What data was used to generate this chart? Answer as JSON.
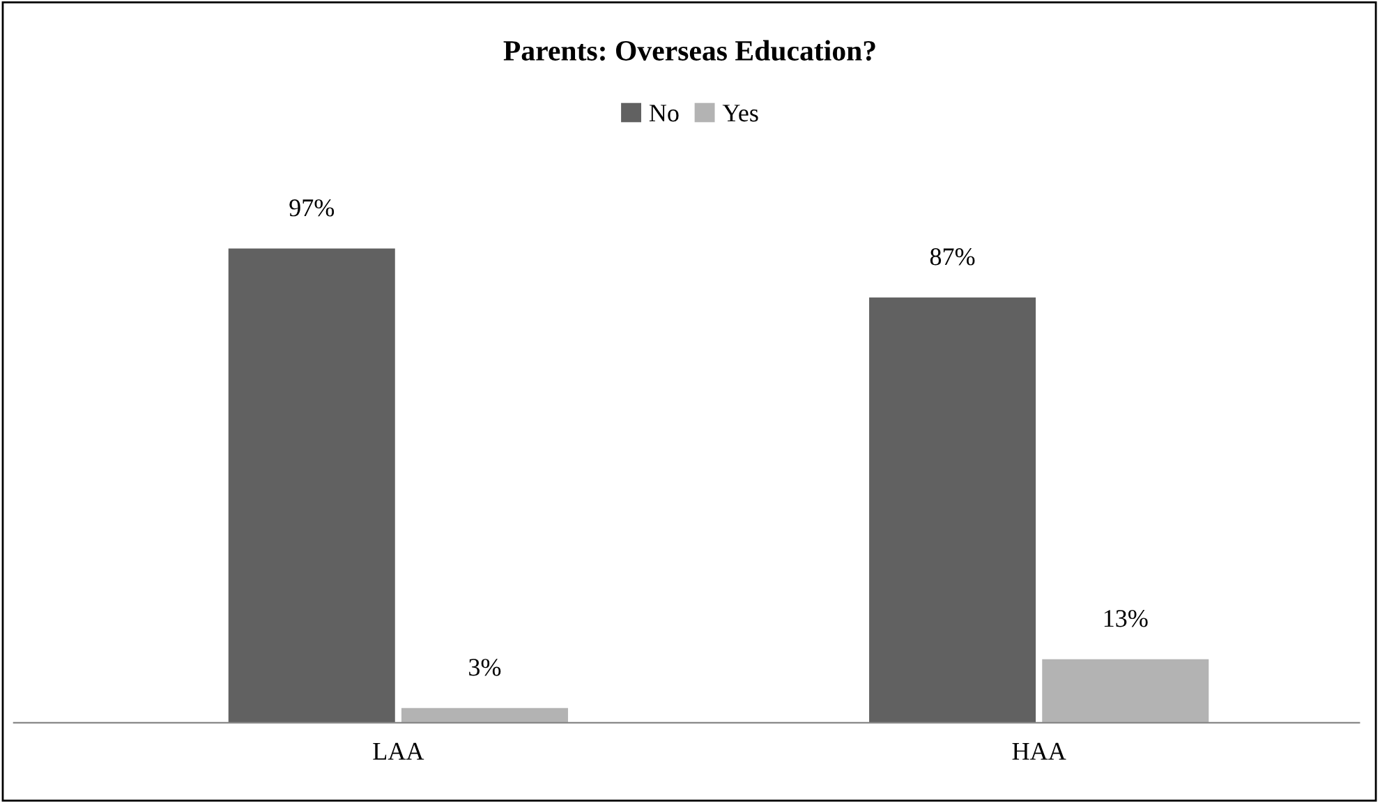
{
  "chart_data": {
    "type": "bar",
    "title": "Parents: Overseas Education?",
    "categories": [
      "LAA",
      "HAA"
    ],
    "series": [
      {
        "name": "No",
        "color": "#616161",
        "values": [
          97,
          87
        ],
        "value_labels": [
          "97%",
          "87%"
        ]
      },
      {
        "name": "Yes",
        "color": "#b3b3b3",
        "values": [
          3,
          13
        ],
        "value_labels": [
          "3%",
          "13%"
        ]
      }
    ],
    "legend": "top",
    "grid": false
  }
}
